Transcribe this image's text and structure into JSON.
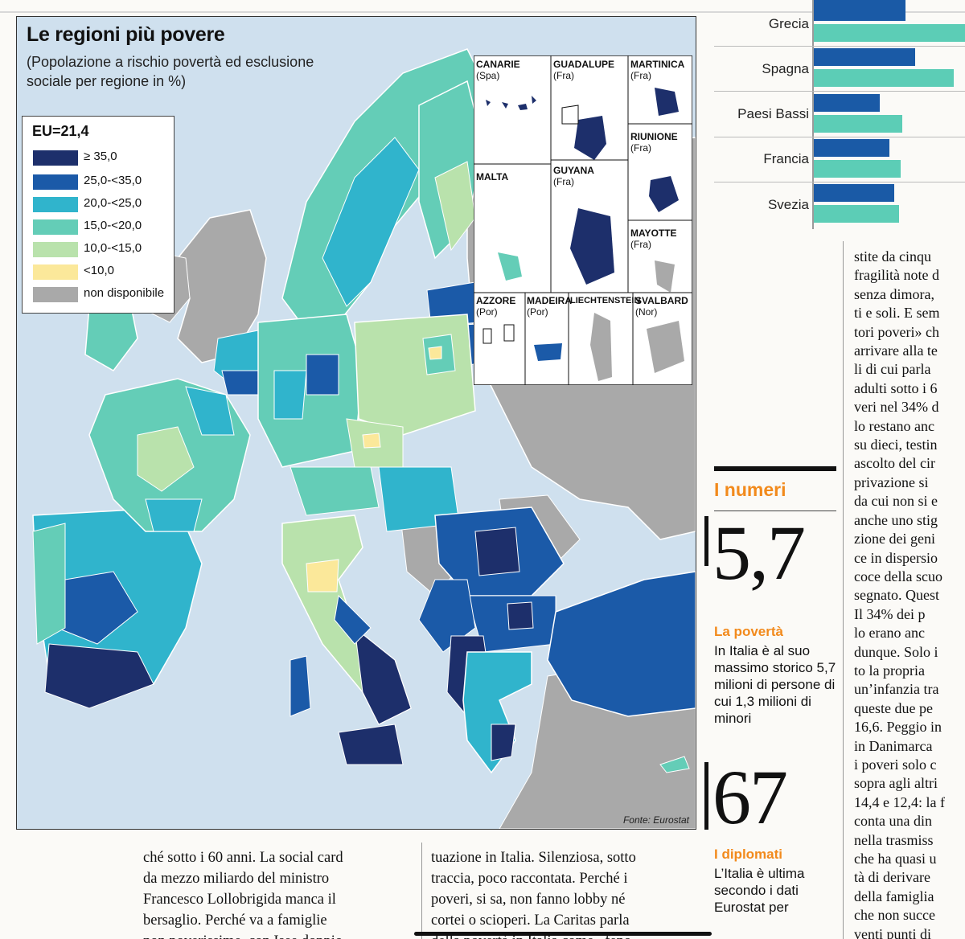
{
  "map": {
    "title": "Le regioni più povere",
    "subtitle": "(Popolazione a rischio povertà ed esclusione sociale per regione in %)",
    "legend_title": "EU=21,4",
    "legend": [
      {
        "label": "≥ 35,0",
        "color": "#1d2f6b"
      },
      {
        "label": "25,0-<35,0",
        "color": "#1b5aa8"
      },
      {
        "label": "20,0-<25,0",
        "color": "#30b4cc"
      },
      {
        "label": "15,0-<20,0",
        "color": "#64cdb7"
      },
      {
        "label": "10,0-<15,0",
        "color": "#b9e2ac"
      },
      {
        "label": "<10,0",
        "color": "#fbe89a"
      },
      {
        "label": "non disponibile",
        "color": "#a9a9a9"
      }
    ],
    "insets": [
      {
        "name": "CANARIE",
        "country": "(Spa)"
      },
      {
        "name": "GUADALUPE",
        "country": "(Fra)"
      },
      {
        "name": "MARTINICA",
        "country": "(Fra)"
      },
      {
        "name": "RIUNIONE",
        "country": "(Fra)"
      },
      {
        "name": "MALTA",
        "country": ""
      },
      {
        "name": "GUYANA",
        "country": "(Fra)"
      },
      {
        "name": "MAYOTTE",
        "country": "(Fra)"
      },
      {
        "name": "AZZORE",
        "country": "(Por)"
      },
      {
        "name": "MADEIRA",
        "country": "(Por)"
      },
      {
        "name": "LIECHTENSTEIN",
        "country": ""
      },
      {
        "name": "SVALBARD",
        "country": "(Nor)"
      }
    ],
    "source": "Fonte: Eurostat"
  },
  "bars": {
    "countries": [
      "Grecia",
      "Spagna",
      "Paesi Bassi",
      "Francia",
      "Svezia"
    ]
  },
  "numeri": {
    "title": "I numeri",
    "items": [
      {
        "value": "5,7",
        "heading": "La povertà",
        "body": "In Italia è al suo massimo storico 5,7 milioni di persone di cui 1,3 milioni di minori"
      },
      {
        "value": "67",
        "heading": "I diplomati",
        "body": "L’Italia è ultima secondo i dati Eurostat per"
      }
    ]
  },
  "article": {
    "col_bottom_1": [
      "ché sotto i 60 anni. La social card",
      "da mezzo miliardo del ministro",
      "Francesco Lollobrigida manca il",
      "bersaglio. Perché va a famiglie",
      "non poverissime, con Isee doppio"
    ],
    "col_bottom_2": [
      "tuazione in Italia. Silenziosa, sotto",
      "traccia, poco raccontata. Perché i",
      "poveri, si sa, non fanno lobby né",
      "cortei o scioperi. La Caritas parla",
      "della povertà in Italia come «feno-"
    ],
    "col_right": [
      "stite da cinqu",
      "fragilità note d",
      "senza dimora,",
      "ti e soli. E sem",
      "tori poveri» ch",
      "arrivare alla te",
      "li di cui parla",
      "adulti sotto i 6",
      "veri nel 34% d",
      "lo restano anc",
      "su dieci, testin",
      "ascolto del cir",
      "privazione si",
      "da cui non si e",
      "anche uno stig",
      "zione dei geni",
      "ce in dispersio",
      "coce della scuo",
      "segnato. Quest",
      "Il 34% dei p",
      "lo erano anc",
      "dunque. Solo i",
      "to la propria",
      "un’infanzia tra",
      "queste due pe",
      "16,6. Peggio in",
      "in Danimarca",
      "i poveri solo c",
      "sopra agli altri",
      "14,4 e 12,4: la f",
      "conta una din",
      "nella trasmiss",
      "che ha quasi u",
      "tà di derivare",
      "della famiglia",
      "che non succe",
      "venti punti di"
    ]
  }
}
